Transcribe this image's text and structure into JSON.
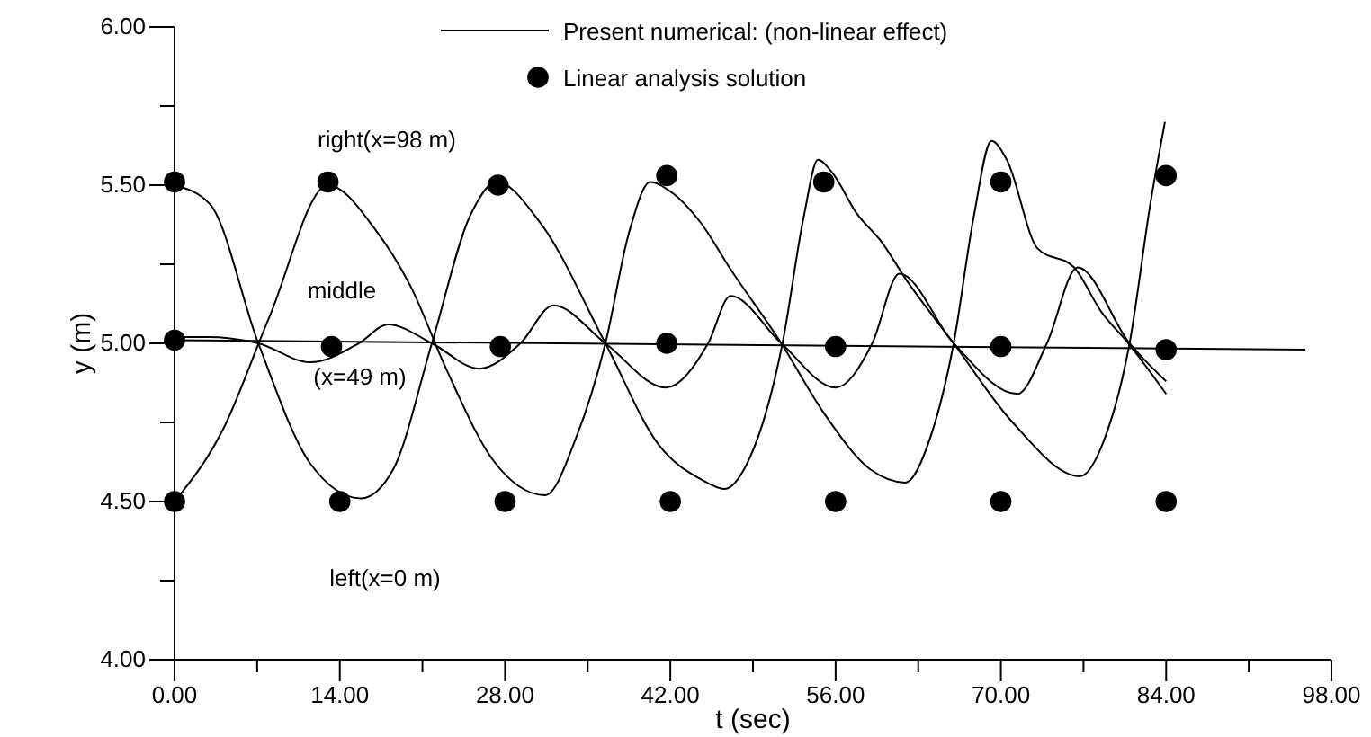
{
  "chart_data": {
    "type": "line",
    "xlabel": "t (sec)",
    "ylabel": "y (m)",
    "xlim": [
      0,
      98
    ],
    "ylim": [
      4,
      6
    ],
    "xticks": [
      {
        "value": 0,
        "label": "0.00"
      },
      {
        "value": 7,
        "label": null
      },
      {
        "value": 14,
        "label": "14.00"
      },
      {
        "value": 21,
        "label": null
      },
      {
        "value": 28,
        "label": "28.00"
      },
      {
        "value": 35,
        "label": null
      },
      {
        "value": 42,
        "label": "42.00"
      },
      {
        "value": 49,
        "label": null
      },
      {
        "value": 56,
        "label": "56.00"
      },
      {
        "value": 63,
        "label": null
      },
      {
        "value": 70,
        "label": "70.00"
      },
      {
        "value": 77,
        "label": null
      },
      {
        "value": 84,
        "label": "84.00"
      },
      {
        "value": 91,
        "label": null
      },
      {
        "value": 98,
        "label": "98.00"
      }
    ],
    "yticks": [
      {
        "value": 4,
        "label": "4.00"
      },
      {
        "value": 4.25,
        "label": null
      },
      {
        "value": 4.5,
        "label": "4.50"
      },
      {
        "value": 4.75,
        "label": null
      },
      {
        "value": 5,
        "label": "5.00"
      },
      {
        "value": 5.25,
        "label": null
      },
      {
        "value": 5.5,
        "label": "5.50"
      },
      {
        "value": 5.75,
        "label": null
      },
      {
        "value": 6,
        "label": "6.00"
      }
    ],
    "grid": false,
    "legend": "top",
    "line_style": "solid",
    "series": [
      {
        "name": "Present numerical: (non-linear effect)",
        "color": "#000000",
        "x": [
          0,
          3,
          7.1,
          11.5,
          15.8,
          18.5,
          21.8,
          25,
          27.3,
          31,
          36.5,
          41,
          44.6,
          46.6,
          48.5,
          51.5,
          53.3,
          54.5,
          55.7,
          57.8,
          59.9,
          62,
          66,
          71,
          76.7,
          78.8,
          80.9,
          82.7,
          83.9
        ],
        "values": [
          5.5,
          5.44,
          5.0,
          4.62,
          4.51,
          4.6,
          5.0,
          5.4,
          5.51,
          5.38,
          5.0,
          4.68,
          4.57,
          4.54,
          4.62,
          5.0,
          5.4,
          5.58,
          5.54,
          5.41,
          5.32,
          5.2,
          5.0,
          4.75,
          4.58,
          4.7,
          5.0,
          5.45,
          5.7
        ]
      },
      {
        "color": "#000000",
        "x": [
          0,
          4,
          8,
          13,
          17,
          20,
          23,
          27,
          31.4,
          34,
          36.5,
          38.5,
          40.3,
          42,
          44.6,
          47,
          51.4,
          55,
          59,
          61.9,
          64,
          66,
          67.7,
          69.2,
          70.5,
          73.1,
          76.2,
          78.5,
          80.8,
          84
        ],
        "values": [
          4.5,
          4.72,
          5.08,
          5.5,
          5.36,
          5.18,
          4.92,
          4.63,
          4.52,
          4.7,
          5.0,
          5.35,
          5.51,
          5.48,
          5.38,
          5.24,
          5.0,
          4.78,
          4.6,
          4.56,
          4.7,
          5.0,
          5.4,
          5.64,
          5.58,
          5.3,
          5.24,
          5.1,
          5.0,
          4.84
        ]
      },
      {
        "color": "#000000",
        "x": [
          0,
          2.8,
          7.1,
          11.5,
          15.6,
          18.1,
          21.8,
          25.8,
          29.3,
          32.1,
          36.5,
          41.6,
          45.2,
          47.1,
          51.4,
          56,
          59.1,
          61.4,
          66,
          71.4,
          73.9,
          76.5,
          80.9,
          84
        ],
        "values": [
          5.02,
          5.02,
          5.0,
          4.94,
          5.0,
          5.06,
          5.0,
          4.92,
          5.0,
          5.12,
          5.0,
          4.86,
          5.0,
          5.15,
          5.0,
          4.86,
          5.0,
          5.22,
          5.0,
          4.84,
          5.0,
          5.24,
          5.0,
          4.88
        ]
      },
      {
        "color": "#000000",
        "x": [
          0,
          95.8
        ],
        "values": [
          5.01,
          4.98
        ]
      },
      {
        "name": "Linear analysis solution",
        "type": "scatter",
        "marker": "circle",
        "color": "#000000",
        "x": [
          0,
          13,
          27.4,
          41.7,
          55,
          70,
          84,
          0,
          13.3,
          27.6,
          41.7,
          56,
          70,
          84,
          0,
          14,
          28,
          42,
          56,
          70,
          84
        ],
        "values": [
          5.51,
          5.51,
          5.5,
          5.53,
          5.51,
          5.51,
          5.53,
          5.01,
          4.99,
          4.99,
          5.0,
          4.99,
          4.99,
          4.98,
          4.5,
          4.5,
          4.5,
          4.5,
          4.5,
          4.5,
          4.5
        ]
      }
    ],
    "annotations": [
      "right(x=98 m)",
      "middle",
      "(x=49 m)",
      "left(x=0 m)"
    ]
  }
}
